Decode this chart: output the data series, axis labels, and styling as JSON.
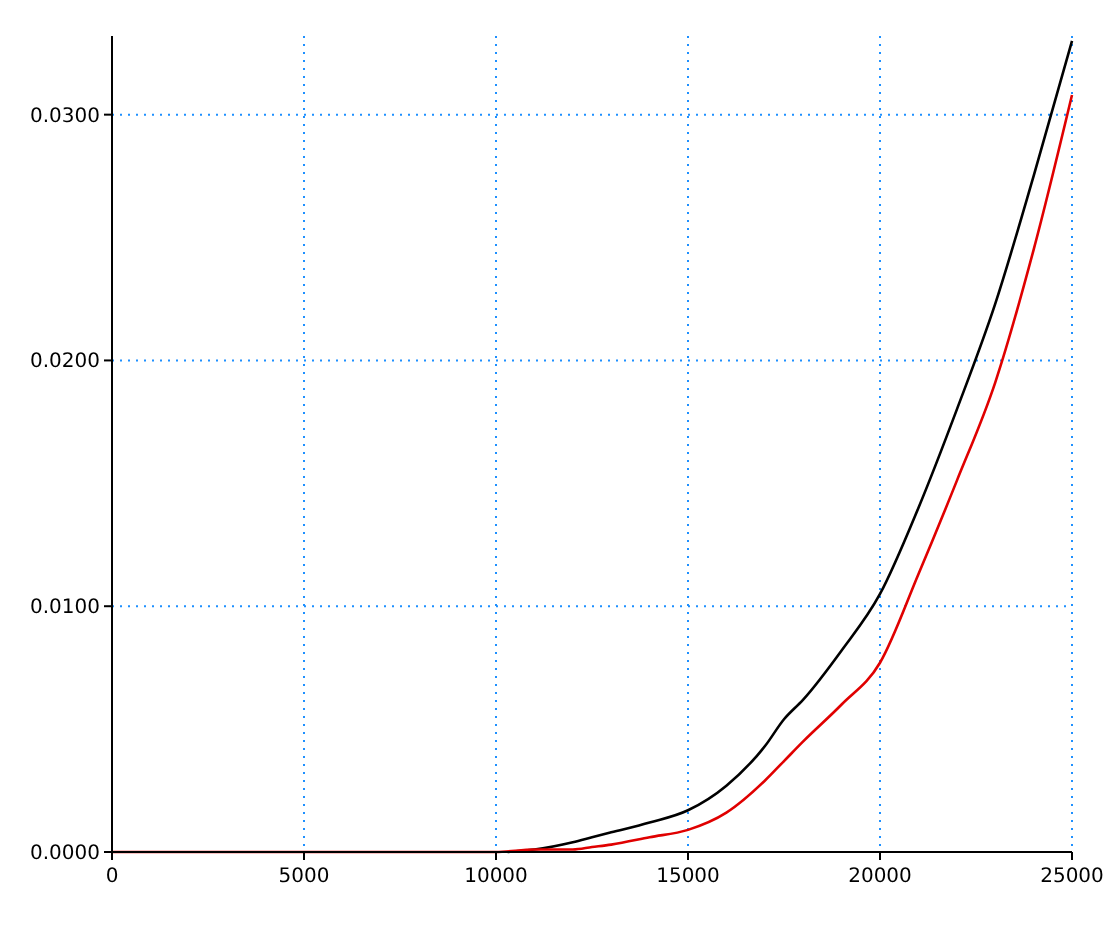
{
  "chart_data": {
    "type": "line",
    "xlim": [
      0,
      25000
    ],
    "ylim": [
      0,
      0.0332
    ],
    "xticks": [
      0,
      5000,
      10000,
      15000,
      20000,
      25000
    ],
    "yticks": [
      {
        "value": 0,
        "label": "0.0000"
      },
      {
        "value": 0.01,
        "label": "0.0100"
      },
      {
        "value": 0.02,
        "label": "0.0200"
      },
      {
        "value": 0.03,
        "label": "0.0300"
      }
    ],
    "grid": true,
    "line_style": "solid",
    "marker": "none",
    "series": [
      {
        "color": "#000000",
        "x": [
          10300,
          11000,
          12000,
          12500,
          13000,
          14000,
          15000,
          16000,
          17000,
          17500,
          18000,
          19000,
          20000,
          21000,
          22000,
          23000,
          24000,
          25000
        ],
        "values": [
          0,
          0.0001,
          0.0004,
          0.0006,
          0.0008,
          0.0012,
          0.0017,
          0.0027,
          0.0043,
          0.0054,
          0.0062,
          0.0082,
          0.0105,
          0.014,
          0.018,
          0.0223,
          0.0275,
          0.033
        ]
      },
      {
        "color": "#e00000",
        "x": [
          0,
          5000,
          10000,
          11000,
          12000,
          12500,
          13000,
          14000,
          15000,
          16000,
          17000,
          17500,
          18000,
          19000,
          20000,
          21000,
          22000,
          23000,
          24000,
          25000
        ],
        "values": [
          0,
          0,
          0,
          0.0001,
          0.0001,
          0.0002,
          0.0003,
          0.0006,
          0.0009,
          0.0016,
          0.0029,
          0.0037,
          0.0045,
          0.006,
          0.0077,
          0.0113,
          0.0151,
          0.0191,
          0.0245,
          0.0308
        ]
      }
    ]
  }
}
